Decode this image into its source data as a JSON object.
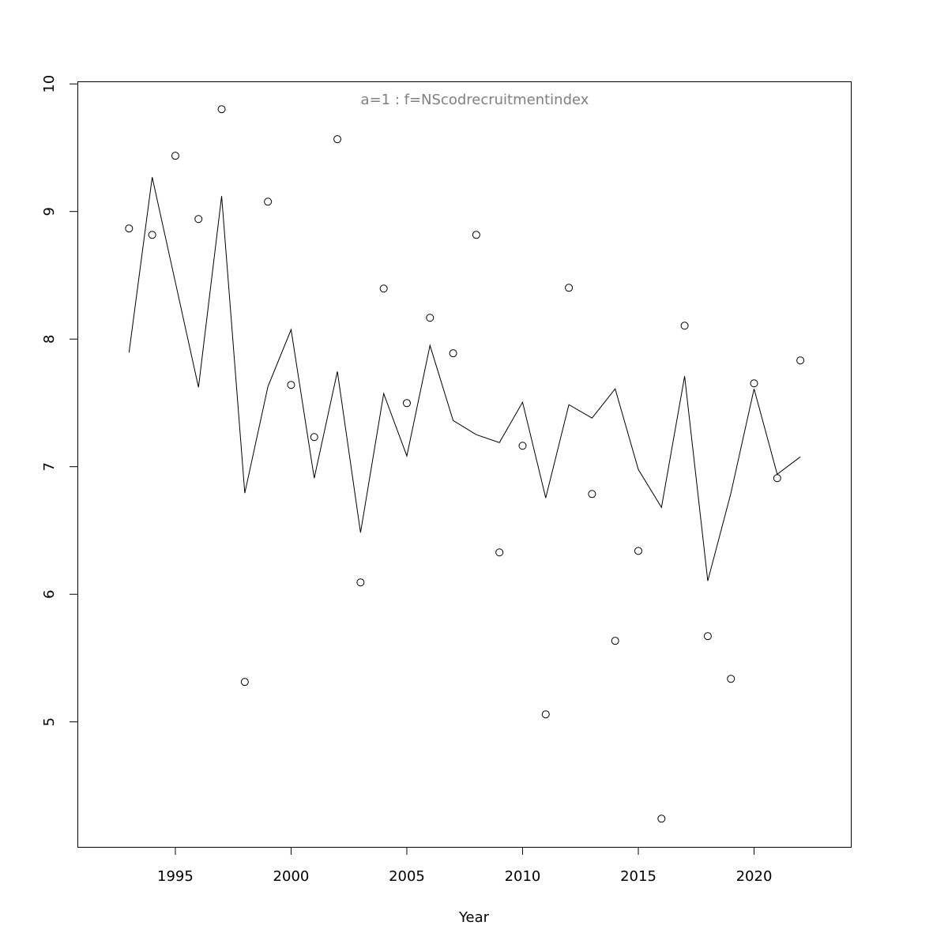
{
  "chart_data": {
    "type": "line_points",
    "title": "a=1  :  f=NScodrecruitmentindex",
    "title_color": "#808080",
    "x_label": "Year",
    "x": [
      1993,
      1994,
      1995,
      1996,
      1997,
      1998,
      1999,
      2000,
      2001,
      2002,
      2003,
      2004,
      2005,
      2006,
      2007,
      2008,
      2009,
      2010,
      2011,
      2012,
      2013,
      2014,
      2015,
      2016,
      2017,
      2018,
      2019,
      2020,
      2021,
      2022
    ],
    "series": [
      {
        "style": "points",
        "color": "#000000",
        "values": [
          8.867,
          8.817,
          9.437,
          8.941,
          9.802,
          5.313,
          9.077,
          7.641,
          7.232,
          9.567,
          6.093,
          8.396,
          7.498,
          8.167,
          7.889,
          8.817,
          6.328,
          7.164,
          5.059,
          8.402,
          6.786,
          5.635,
          6.34,
          4.241,
          8.105,
          5.672,
          5.337,
          7.653,
          6.91,
          7.833
        ]
      },
      {
        "style": "line",
        "color": "#000000",
        "values": [
          7.895,
          9.269,
          8.446,
          7.622,
          9.121,
          6.793,
          7.628,
          8.074,
          6.91,
          7.746,
          6.483,
          7.573,
          7.084,
          7.95,
          7.362,
          7.251,
          7.189,
          7.505,
          6.755,
          7.486,
          7.381,
          7.61,
          6.978,
          6.681,
          7.709,
          6.105,
          6.793,
          7.61,
          6.941,
          7.077
        ]
      }
    ],
    "xlim": [
      1990.77,
      2024.18
    ],
    "ylim": [
      4.02,
      10.02
    ],
    "xticks": [
      1995,
      2000,
      2005,
      2010,
      2015,
      2020
    ],
    "yticks": [
      5,
      6,
      7,
      8,
      9,
      10
    ]
  }
}
